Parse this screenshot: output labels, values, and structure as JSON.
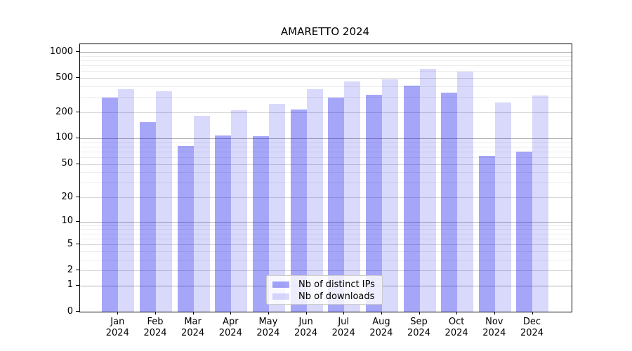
{
  "chart_data": {
    "type": "bar",
    "title": "AMARETTO 2024",
    "categories": [
      "Jan 2024",
      "Feb 2024",
      "Mar 2024",
      "Apr 2024",
      "May 2024",
      "Jun 2024",
      "Jul 2024",
      "Aug 2024",
      "Sep 2024",
      "Oct 2024",
      "Nov 2024",
      "Dec 2024"
    ],
    "series": [
      {
        "name": "Nb of distinct IPs",
        "color": "rgba(0,0,238,0.35)",
        "color_hex_on_white": "#a6a6f9",
        "values": [
          295,
          154,
          81,
          108,
          105,
          214,
          297,
          318,
          409,
          339,
          62,
          70
        ]
      },
      {
        "name": "Nb of downloads",
        "color": "rgba(0,0,238,0.15)",
        "color_hex_on_white": "#d9d9fc",
        "values": [
          372,
          350,
          181,
          213,
          253,
          370,
          460,
          485,
          645,
          590,
          260,
          317
        ]
      }
    ],
    "yscale": "log1p",
    "ylim": [
      0,
      1230
    ],
    "yticks_labeled": [
      0,
      1,
      2,
      5,
      10,
      20,
      50,
      100,
      200,
      500,
      1000
    ],
    "gridlines": {
      "major": [
        1,
        10,
        100,
        1000
      ],
      "mid": [
        2,
        5,
        20,
        50,
        200,
        500
      ],
      "minor": [
        3,
        4,
        6,
        7,
        8,
        9,
        30,
        40,
        60,
        70,
        80,
        90,
        300,
        400,
        600,
        700,
        800,
        900
      ]
    },
    "grid_on": true,
    "legend_position": "lower center",
    "xlabel": "",
    "ylabel": ""
  },
  "colors": {
    "grid_major": "#b0b0b0",
    "grid_mid": "#d7d7d7",
    "grid_minor": "#ececec",
    "spine": "#000000",
    "background": "#ffffff"
  }
}
